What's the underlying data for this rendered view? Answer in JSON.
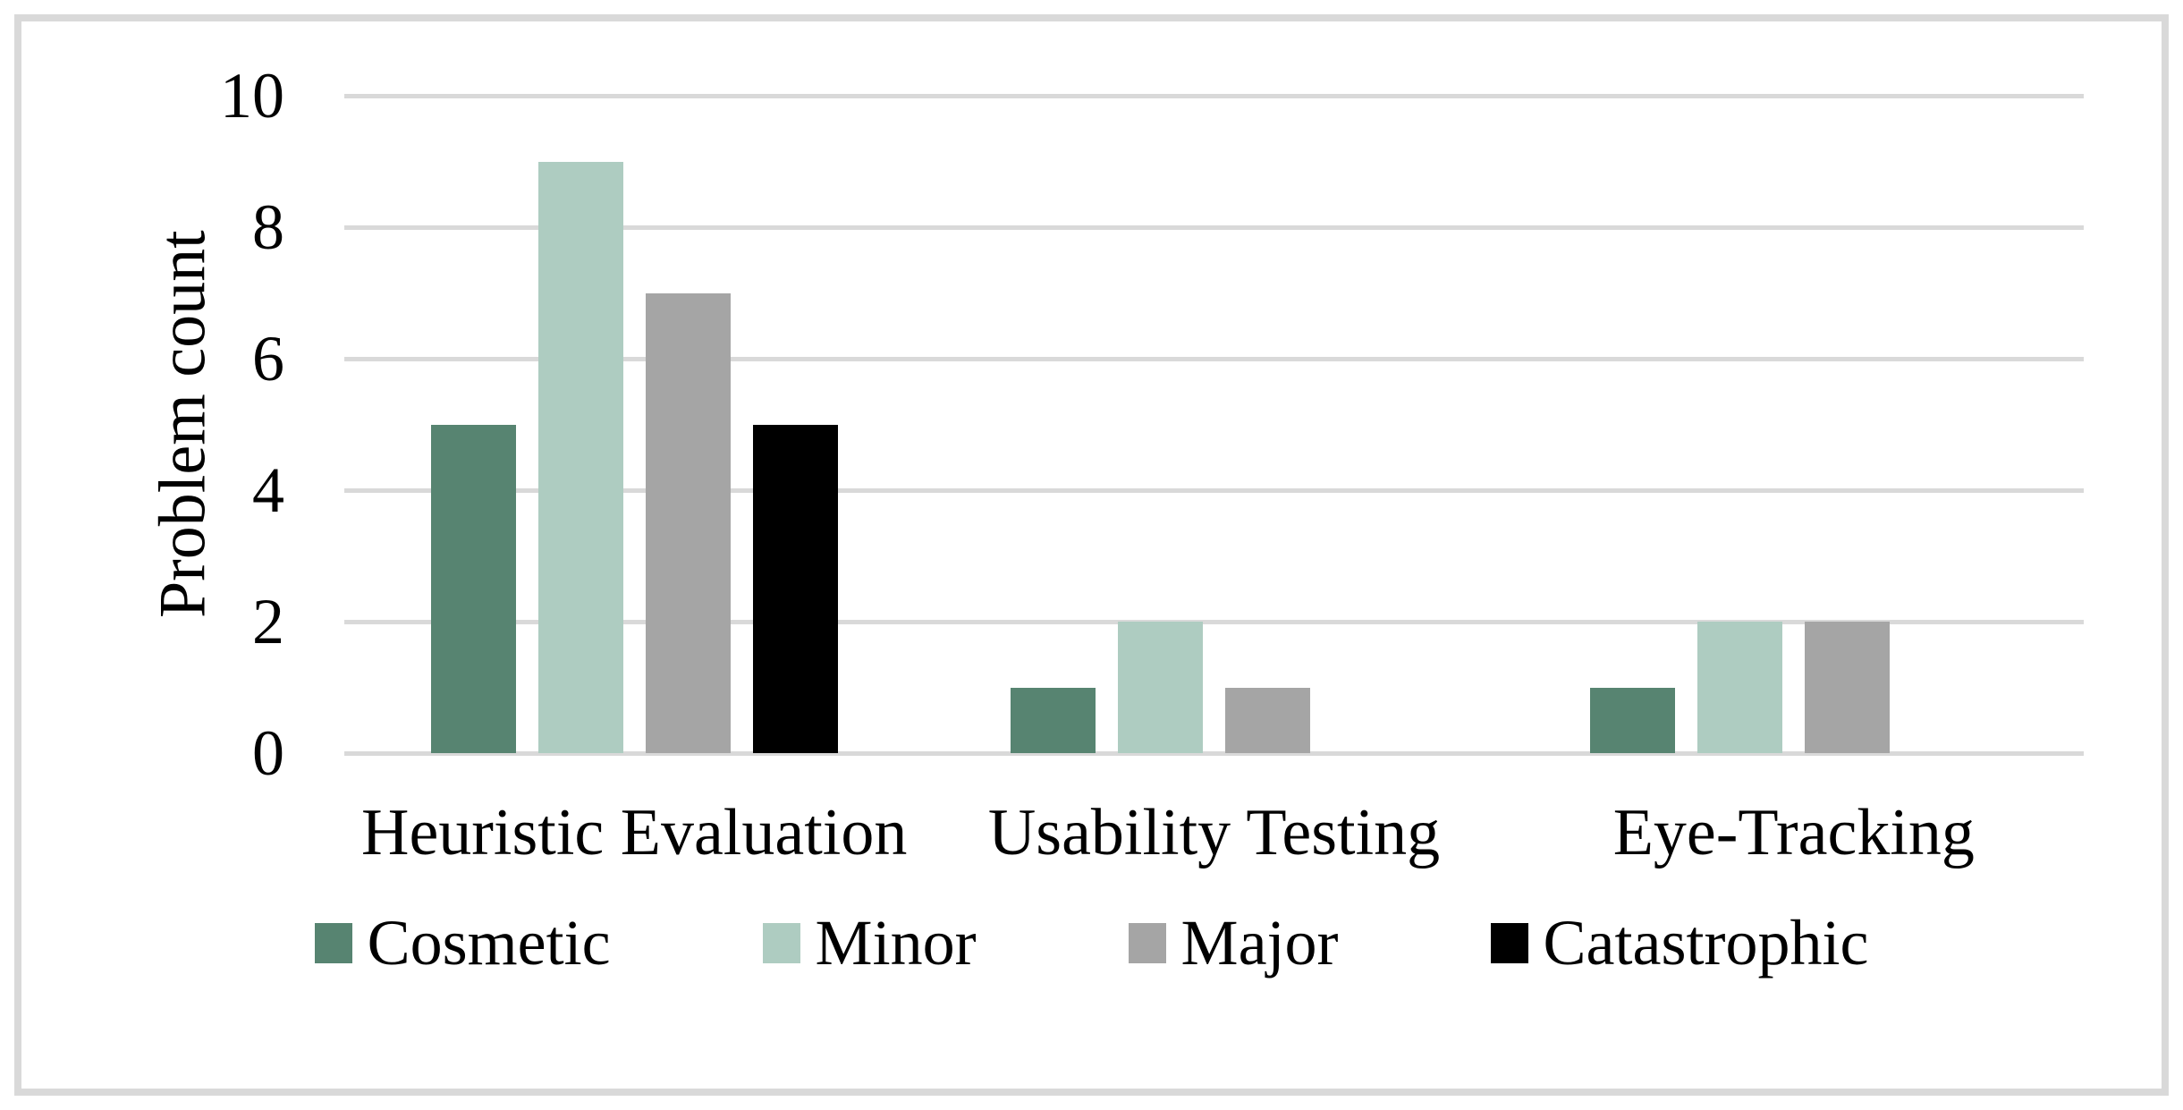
{
  "figure": {
    "border_color": "#d9d9d9",
    "background": "#ffffff"
  },
  "chart_data": {
    "type": "bar",
    "title": "",
    "ylabel": "Problem count",
    "xlabel": "",
    "categories": [
      "Heuristic Evaluation",
      "Usability Testing",
      "Eye-Tracking"
    ],
    "series": [
      {
        "name": "Cosmetic",
        "color": "#578471",
        "values": [
          5,
          1,
          1
        ]
      },
      {
        "name": "Minor",
        "color": "#aeccc1",
        "values": [
          9,
          2,
          2
        ]
      },
      {
        "name": "Major",
        "color": "#a5a5a5",
        "values": [
          7,
          1,
          2
        ]
      },
      {
        "name": "Catastrophic",
        "color": "#000000",
        "values": [
          5,
          0,
          0
        ]
      }
    ],
    "ylim": [
      0,
      10
    ],
    "yticks": [
      0,
      2,
      4,
      6,
      8,
      10
    ],
    "grid": true,
    "gridline_color": "#d9d9d9",
    "legend_position": "bottom"
  }
}
